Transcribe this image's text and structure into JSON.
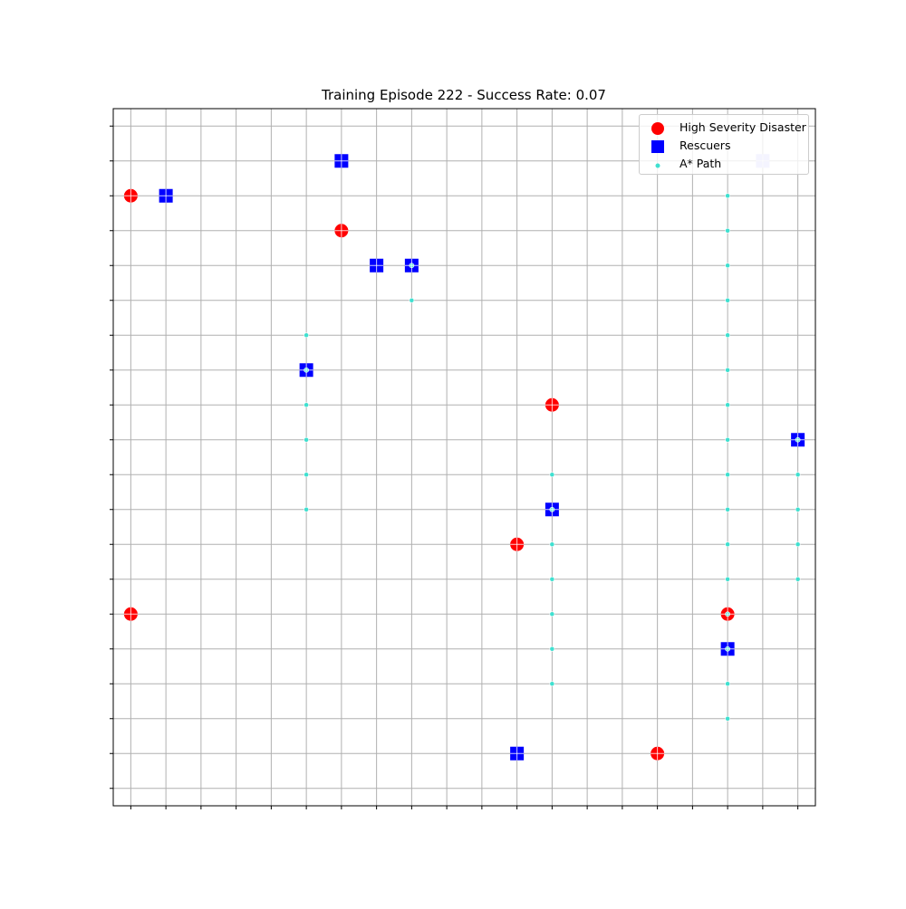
{
  "chart_data": {
    "type": "scatter",
    "title": "Training Episode 222 - Success Rate: 0.07",
    "xlabel": "",
    "ylabel": "",
    "xlim": [
      -0.5,
      19.5
    ],
    "ylim": [
      -0.5,
      19.5
    ],
    "grid": true,
    "tick_labels_shown": false,
    "legend_position": "top-right",
    "colors": {
      "disaster": "#ff0000",
      "rescuer": "#0000ff",
      "path": "#40e0d0",
      "grid": "#b0b0b0"
    },
    "series": [
      {
        "name": "High Severity Disaster",
        "marker": "circle",
        "points": [
          [
            0,
            17
          ],
          [
            6,
            16
          ],
          [
            12,
            11
          ],
          [
            11,
            7
          ],
          [
            0,
            5
          ],
          [
            17,
            5
          ],
          [
            15,
            1
          ]
        ]
      },
      {
        "name": "Rescuers",
        "marker": "square",
        "points": [
          [
            6,
            18
          ],
          [
            1,
            17
          ],
          [
            7,
            15
          ],
          [
            8,
            15
          ],
          [
            5,
            12
          ],
          [
            19,
            10
          ],
          [
            12,
            8
          ],
          [
            17,
            4
          ],
          [
            11,
            1
          ],
          [
            18,
            18
          ]
        ]
      },
      {
        "name": "A* Path",
        "marker": "dot",
        "points": [
          [
            8,
            15
          ],
          [
            8,
            14
          ],
          [
            5,
            13
          ],
          [
            5,
            12
          ],
          [
            5,
            11
          ],
          [
            5,
            10
          ],
          [
            5,
            9
          ],
          [
            5,
            8
          ],
          [
            12,
            9
          ],
          [
            12,
            8
          ],
          [
            12,
            7
          ],
          [
            12,
            6
          ],
          [
            12,
            5
          ],
          [
            12,
            4
          ],
          [
            12,
            3
          ],
          [
            17,
            17
          ],
          [
            17,
            16
          ],
          [
            17,
            15
          ],
          [
            17,
            14
          ],
          [
            17,
            13
          ],
          [
            17,
            12
          ],
          [
            17,
            11
          ],
          [
            17,
            10
          ],
          [
            17,
            9
          ],
          [
            17,
            8
          ],
          [
            17,
            7
          ],
          [
            17,
            6
          ],
          [
            17,
            5
          ],
          [
            17,
            4
          ],
          [
            17,
            3
          ],
          [
            17,
            2
          ],
          [
            19,
            10
          ],
          [
            19,
            9
          ],
          [
            19,
            8
          ],
          [
            19,
            7
          ],
          [
            19,
            6
          ]
        ]
      }
    ]
  }
}
